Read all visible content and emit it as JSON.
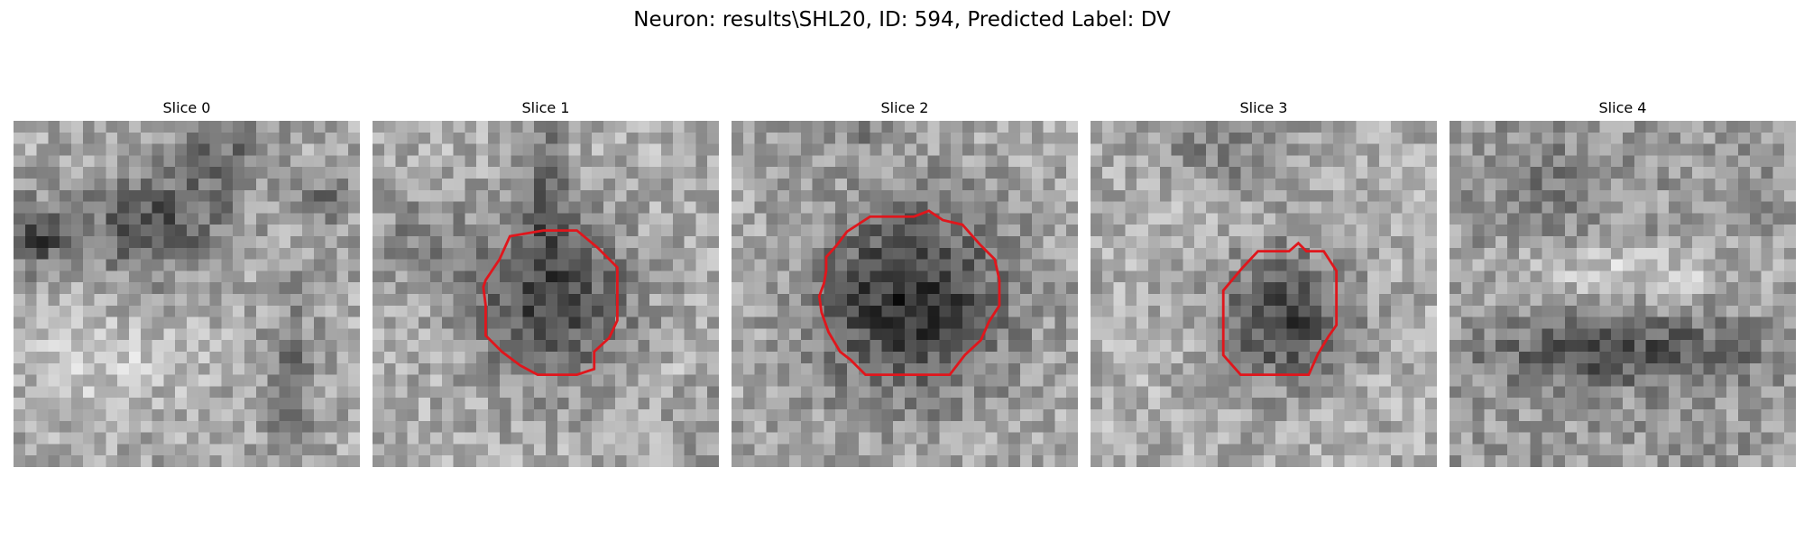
{
  "figure": {
    "title": "Neuron: results\\SHL20, ID: 594, Predicted Label: DV",
    "contour_color": "#e0161c",
    "colormap": "gray",
    "grid_size": 30
  },
  "slices": [
    {
      "title": "Slice 0",
      "has_contour": false,
      "pattern": "blobs-left",
      "seed": 11,
      "contour": []
    },
    {
      "title": "Slice 1",
      "has_contour": true,
      "pattern": "cell-with-stalk",
      "seed": 23,
      "contour": [
        [
          11.9,
          10.0
        ],
        [
          14.8,
          9.5
        ],
        [
          17.7,
          9.5
        ],
        [
          19.5,
          11.0
        ],
        [
          21.2,
          12.7
        ],
        [
          21.2,
          15.6
        ],
        [
          21.2,
          17.3
        ],
        [
          20.5,
          18.8
        ],
        [
          19.2,
          20.0
        ],
        [
          19.2,
          21.5
        ],
        [
          17.7,
          22.0
        ],
        [
          14.3,
          22.0
        ],
        [
          12.8,
          21.2
        ],
        [
          11.2,
          20.0
        ],
        [
          9.8,
          18.6
        ],
        [
          9.8,
          16.0
        ],
        [
          9.6,
          14.4
        ],
        [
          9.8,
          13.8
        ],
        [
          11.0,
          12.0
        ]
      ]
    },
    {
      "title": "Slice 2",
      "has_contour": true,
      "pattern": "cell-large",
      "seed": 37,
      "contour": [
        [
          10.0,
          9.6
        ],
        [
          12.0,
          8.3
        ],
        [
          15.8,
          8.3
        ],
        [
          17.1,
          7.8
        ],
        [
          18.3,
          8.6
        ],
        [
          20.0,
          9.0
        ],
        [
          21.5,
          10.7
        ],
        [
          22.8,
          12.0
        ],
        [
          23.2,
          13.8
        ],
        [
          23.2,
          16.0
        ],
        [
          22.3,
          17.4
        ],
        [
          21.6,
          19.0
        ],
        [
          20.2,
          20.3
        ],
        [
          18.9,
          22.0
        ],
        [
          14.7,
          22.0
        ],
        [
          11.6,
          22.0
        ],
        [
          10.3,
          20.7
        ],
        [
          9.4,
          20.0
        ],
        [
          8.4,
          18.3
        ],
        [
          7.8,
          16.6
        ],
        [
          7.6,
          15.2
        ],
        [
          8.0,
          14.1
        ],
        [
          8.2,
          13.0
        ],
        [
          8.2,
          11.8
        ],
        [
          9.1,
          10.8
        ]
      ]
    },
    {
      "title": "Slice 3",
      "has_contour": true,
      "pattern": "cell-small",
      "seed": 49,
      "contour": [
        [
          14.5,
          11.3
        ],
        [
          17.2,
          11.3
        ],
        [
          18.0,
          10.6
        ],
        [
          18.7,
          11.3
        ],
        [
          20.2,
          11.3
        ],
        [
          21.3,
          13.0
        ],
        [
          21.3,
          16.0
        ],
        [
          21.3,
          17.7
        ],
        [
          20.6,
          18.7
        ],
        [
          19.7,
          20.2
        ],
        [
          18.9,
          22.0
        ],
        [
          15.5,
          22.0
        ],
        [
          13.0,
          22.0
        ],
        [
          11.5,
          20.3
        ],
        [
          11.5,
          16.5
        ],
        [
          11.5,
          14.7
        ],
        [
          13.1,
          12.8
        ]
      ]
    },
    {
      "title": "Slice 4",
      "has_contour": false,
      "pattern": "bright-band",
      "seed": 61,
      "contour": []
    }
  ]
}
